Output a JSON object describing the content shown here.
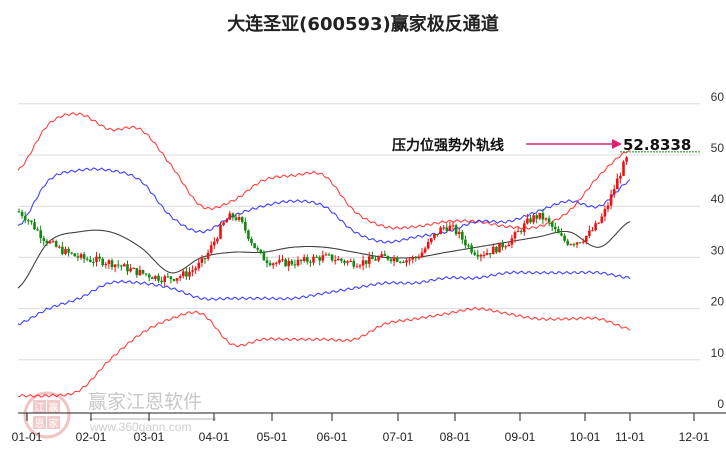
{
  "title": "大连圣亚(600593)赢家极反通道",
  "chart_data": {
    "type": "line",
    "title": "大连圣亚(600593)赢家极反通道",
    "xlabel": "",
    "ylabel": "",
    "ylim": [
      0,
      60
    ],
    "yticks": [
      0,
      10,
      20,
      30,
      40,
      50,
      60
    ],
    "xticks": [
      "01-01",
      "02-01",
      "03-01",
      "04-01",
      "05-01",
      "06-01",
      "07-01",
      "08-01",
      "09-01",
      "10-01",
      "11-01",
      "12-01"
    ],
    "grid": true,
    "annotation": {
      "label": "压力位强势外轨线",
      "value": "52.8338",
      "arrow_color": "#e0206e"
    },
    "reference_line": {
      "value": 50.6,
      "style": "dotted",
      "color": "#1a8a1a"
    },
    "x": [
      "01-01",
      "01-15",
      "02-01",
      "02-15",
      "03-01",
      "03-15",
      "04-01",
      "04-15",
      "05-01",
      "05-15",
      "06-01",
      "06-15",
      "07-01",
      "07-15",
      "08-01",
      "08-15",
      "09-01",
      "09-15",
      "10-01",
      "10-15",
      "10-28"
    ],
    "series": [
      {
        "name": "outer upper (red)",
        "color": "#ff2020",
        "values": [
          47,
          56,
          58,
          55,
          55,
          48,
          40,
          41,
          45,
          46,
          46,
          39,
          36,
          36,
          37,
          37,
          36,
          36,
          39,
          46,
          51
        ]
      },
      {
        "name": "inner upper (blue)",
        "color": "#2020ff",
        "values": [
          36,
          45,
          47,
          47,
          45,
          38,
          35,
          38,
          40,
          41,
          40,
          35,
          33,
          34,
          35,
          37,
          37,
          39,
          41,
          40,
          45
        ]
      },
      {
        "name": "middle (black)",
        "color": "#222222",
        "values": [
          24,
          33,
          35,
          35,
          32,
          27,
          30,
          31,
          31,
          32,
          32,
          31,
          30,
          30,
          31,
          32,
          33,
          34,
          35,
          32,
          37
        ]
      },
      {
        "name": "inner lower (blue)",
        "color": "#2020ff",
        "values": [
          17,
          20,
          22,
          25,
          25,
          24,
          22,
          22,
          22,
          22,
          23,
          24,
          25,
          25,
          26,
          26,
          27,
          27,
          27,
          27,
          26
        ]
      },
      {
        "name": "outer lower (red)",
        "color": "#ff2020",
        "values": [
          3,
          3,
          4,
          10,
          15,
          18,
          19,
          13,
          14,
          14,
          14,
          14,
          17,
          18,
          19,
          20,
          19,
          18,
          18,
          18,
          16
        ]
      },
      {
        "name": "price (candles)",
        "color": "#e00000",
        "values": [
          39,
          33,
          30,
          29,
          27,
          26,
          29,
          38,
          30,
          29,
          30,
          29,
          30,
          30,
          36,
          31,
          33,
          38,
          33,
          37,
          50
        ]
      }
    ]
  },
  "watermark": {
    "name": "赢家江恩软件",
    "url": "www.360gann.com",
    "logo_chars": [
      "江",
      "赢",
      "恩",
      "家"
    ]
  }
}
